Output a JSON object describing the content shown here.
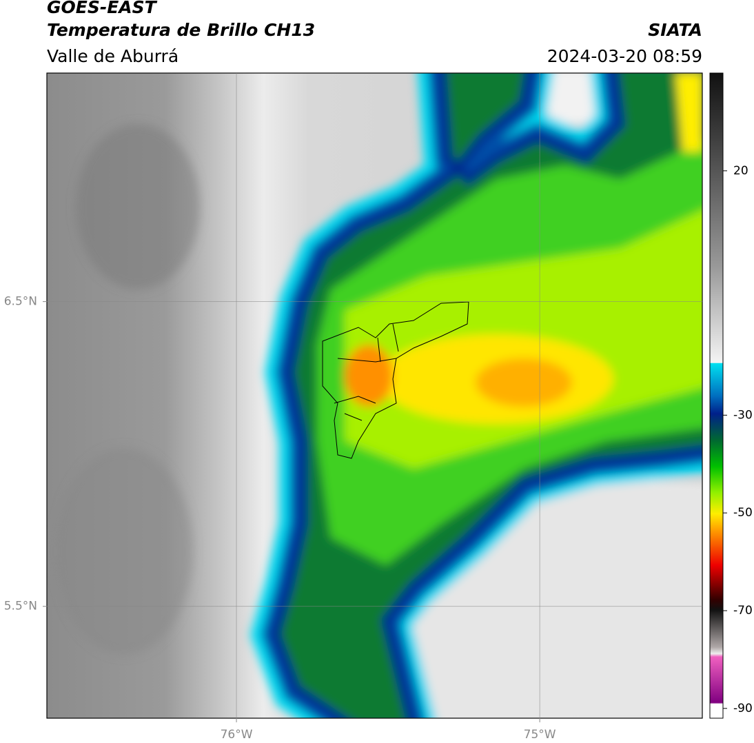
{
  "chart_data": {
    "type": "map",
    "title": "GOES-EAST",
    "subtitle": "Temperatura de Brillo CH13",
    "region": "Valle de Aburrá",
    "source": "SIATA",
    "timestamp": "2024-03-20 08:59",
    "xlim": [
      -76.625,
      -74.464
    ],
    "ylim": [
      5.133,
      7.25
    ],
    "xticks": [
      {
        "value": -76,
        "label": "76°W"
      },
      {
        "value": -75,
        "label": "75°W"
      }
    ],
    "yticks": [
      {
        "value": 6.5,
        "label": "6.5°N"
      },
      {
        "value": 5.5,
        "label": "5.5°N"
      }
    ],
    "grid": true,
    "colorbar": {
      "lim": [
        -92,
        40
      ],
      "ticks": [
        20,
        -30,
        -50,
        -70,
        -90
      ]
    }
  }
}
